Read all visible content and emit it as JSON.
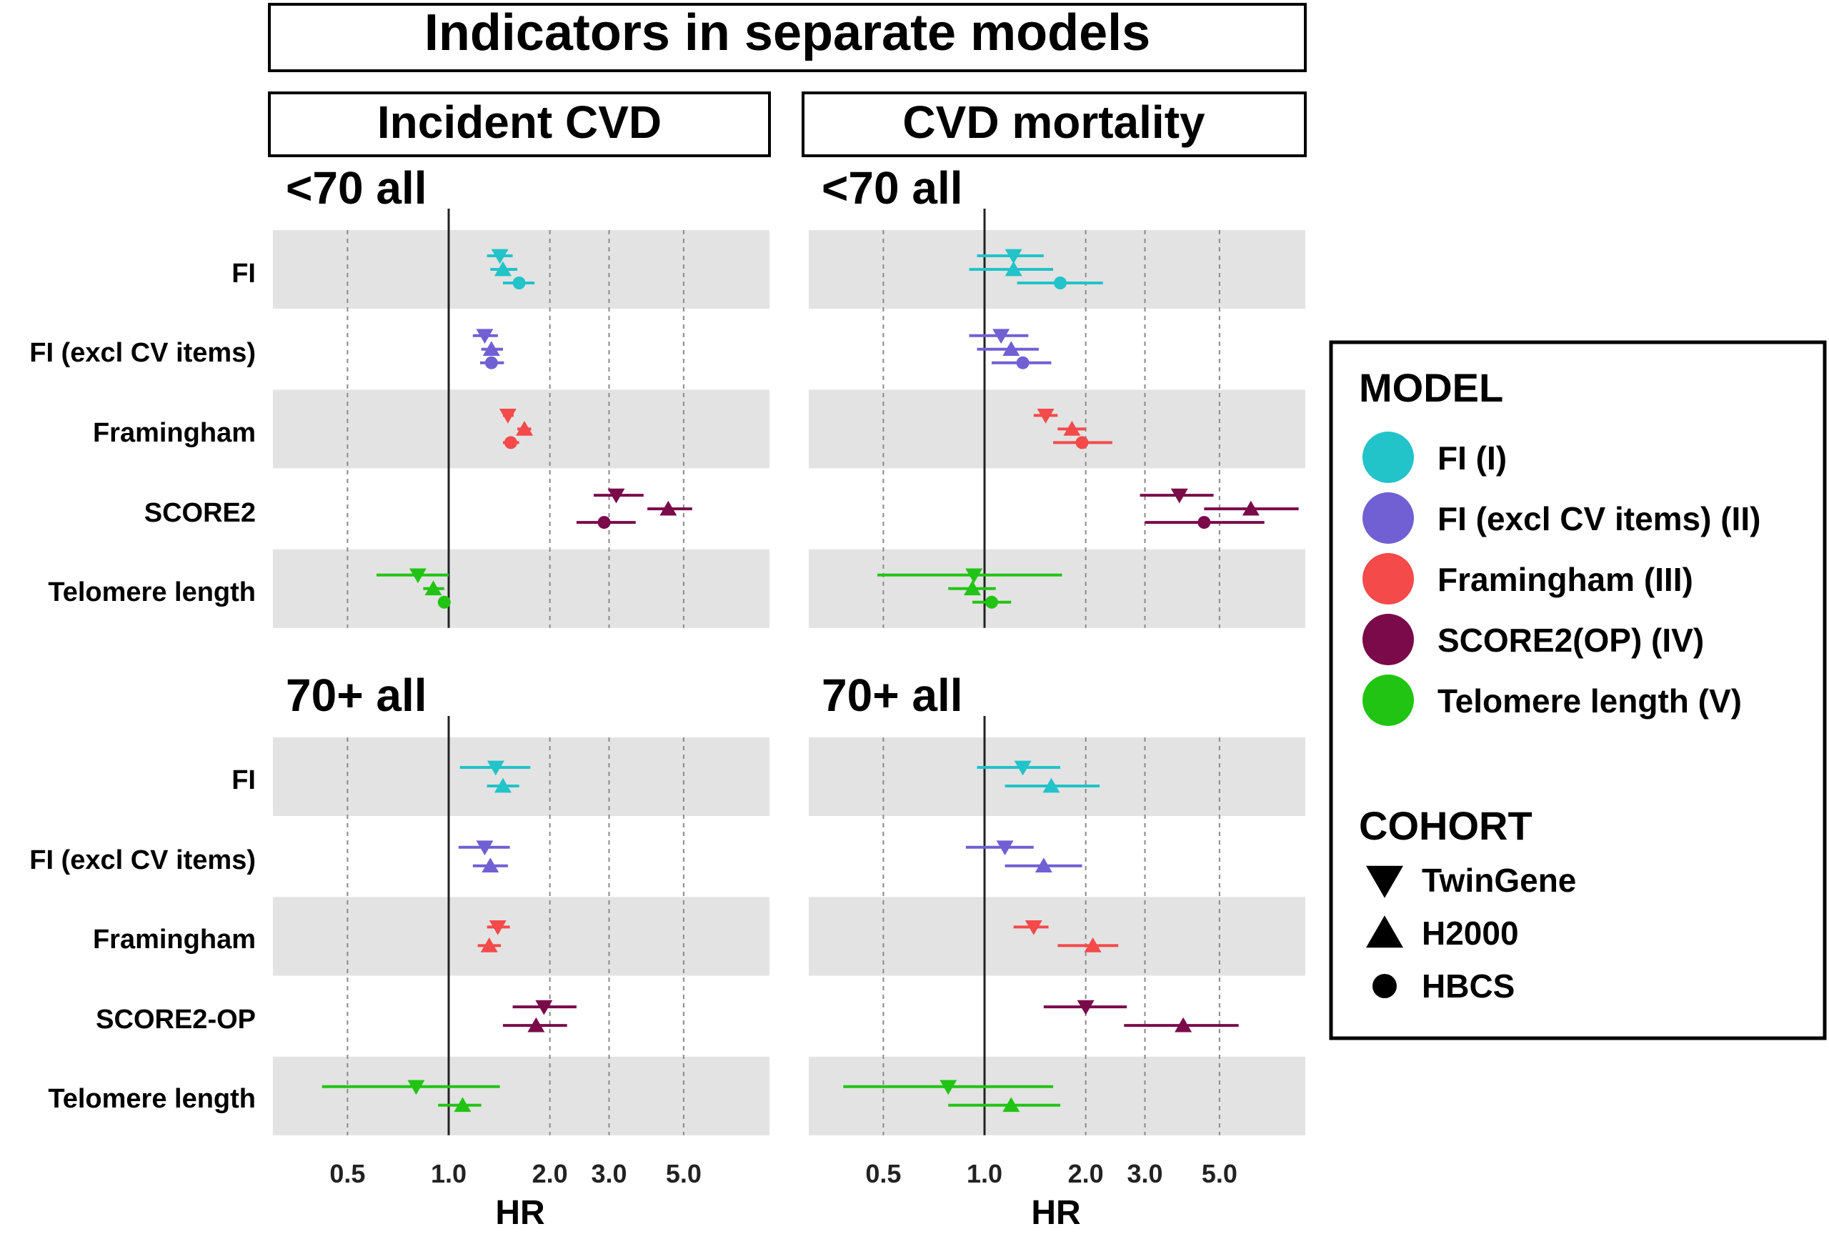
{
  "title": "Indicators in separate models",
  "columns": [
    "Incident CVD",
    "CVD mortality"
  ],
  "sections": [
    "<70 all",
    "70+ all"
  ],
  "row_labels": {
    "under70": [
      "FI",
      "FI (excl CV items)",
      "Framingham",
      "SCORE2",
      "Telomere length"
    ],
    "over70": [
      "FI",
      "FI (excl CV items)",
      "Framingham",
      "SCORE2-OP",
      "Telomere length"
    ]
  },
  "axis": {
    "xlabel": "HR",
    "scale": "log",
    "ticks": [
      0.5,
      1.0,
      2.0,
      3.0,
      5.0
    ],
    "tick_labels": [
      "0.5",
      "1.0",
      "2.0",
      "3.0",
      "5.0"
    ],
    "xlim": [
      0.3,
      9.0
    ],
    "reference_line": 1.0
  },
  "legend": {
    "model_title": "MODEL",
    "models": [
      {
        "label": "FI (I)",
        "color": "#22c3c9"
      },
      {
        "label": "FI (excl CV items) (II)",
        "color": "#7060d4"
      },
      {
        "label": "Framingham (III)",
        "color": "#f44a4a"
      },
      {
        "label": "SCORE2(OP) (IV)",
        "color": "#7a0a4a"
      },
      {
        "label": "Telomere length (V)",
        "color": "#22c414"
      }
    ],
    "cohort_title": "COHORT",
    "cohorts": [
      {
        "label": "TwinGene",
        "shape": "triangle-down"
      },
      {
        "label": "H2000",
        "shape": "triangle-up"
      },
      {
        "label": "HBCS",
        "shape": "circle"
      }
    ]
  },
  "chart_data": [
    {
      "type": "forest",
      "title": "Incident CVD",
      "section": "<70 all",
      "xlabel": "HR",
      "xscale": "log",
      "rows": [
        {
          "label": "FI",
          "model": 0,
          "estimates": [
            {
              "cohort": "TwinGene",
              "hr": 1.42,
              "lo": 1.3,
              "hi": 1.55
            },
            {
              "cohort": "H2000",
              "hr": 1.45,
              "lo": 1.33,
              "hi": 1.6
            },
            {
              "cohort": "HBCS",
              "hr": 1.62,
              "lo": 1.45,
              "hi": 1.8
            }
          ]
        },
        {
          "label": "FI (excl CV items)",
          "model": 1,
          "estimates": [
            {
              "cohort": "TwinGene",
              "hr": 1.28,
              "lo": 1.18,
              "hi": 1.4
            },
            {
              "cohort": "H2000",
              "hr": 1.34,
              "lo": 1.25,
              "hi": 1.45
            },
            {
              "cohort": "HBCS",
              "hr": 1.34,
              "lo": 1.24,
              "hi": 1.46
            }
          ]
        },
        {
          "label": "Framingham",
          "model": 2,
          "estimates": [
            {
              "cohort": "TwinGene",
              "hr": 1.5,
              "lo": 1.45,
              "hi": 1.56
            },
            {
              "cohort": "H2000",
              "hr": 1.68,
              "lo": 1.6,
              "hi": 1.76
            },
            {
              "cohort": "HBCS",
              "hr": 1.53,
              "lo": 1.45,
              "hi": 1.62
            }
          ]
        },
        {
          "label": "SCORE2",
          "model": 3,
          "estimates": [
            {
              "cohort": "TwinGene",
              "hr": 3.15,
              "lo": 2.7,
              "hi": 3.8
            },
            {
              "cohort": "H2000",
              "hr": 4.5,
              "lo": 3.9,
              "hi": 5.3
            },
            {
              "cohort": "HBCS",
              "hr": 2.9,
              "lo": 2.4,
              "hi": 3.6
            }
          ]
        },
        {
          "label": "Telomere length",
          "model": 4,
          "estimates": [
            {
              "cohort": "TwinGene",
              "hr": 0.81,
              "lo": 0.61,
              "hi": 1.0
            },
            {
              "cohort": "H2000",
              "hr": 0.9,
              "lo": 0.84,
              "hi": 0.97
            },
            {
              "cohort": "HBCS",
              "hr": 0.97,
              "lo": 0.93,
              "hi": 1.01
            }
          ]
        }
      ]
    },
    {
      "type": "forest",
      "title": "CVD mortality",
      "section": "<70 all",
      "xlabel": "HR",
      "xscale": "log",
      "rows": [
        {
          "label": "FI",
          "model": 0,
          "estimates": [
            {
              "cohort": "TwinGene",
              "hr": 1.22,
              "lo": 0.95,
              "hi": 1.5
            },
            {
              "cohort": "H2000",
              "hr": 1.22,
              "lo": 0.9,
              "hi": 1.6
            },
            {
              "cohort": "HBCS",
              "hr": 1.68,
              "lo": 1.25,
              "hi": 2.25
            }
          ]
        },
        {
          "label": "FI (excl CV items)",
          "model": 1,
          "estimates": [
            {
              "cohort": "TwinGene",
              "hr": 1.12,
              "lo": 0.9,
              "hi": 1.35
            },
            {
              "cohort": "H2000",
              "hr": 1.2,
              "lo": 0.95,
              "hi": 1.45
            },
            {
              "cohort": "HBCS",
              "hr": 1.3,
              "lo": 1.05,
              "hi": 1.58
            }
          ]
        },
        {
          "label": "Framingham",
          "model": 2,
          "estimates": [
            {
              "cohort": "TwinGene",
              "hr": 1.52,
              "lo": 1.4,
              "hi": 1.65
            },
            {
              "cohort": "H2000",
              "hr": 1.82,
              "lo": 1.65,
              "hi": 2.0
            },
            {
              "cohort": "HBCS",
              "hr": 1.95,
              "lo": 1.6,
              "hi": 2.4
            }
          ]
        },
        {
          "label": "SCORE2",
          "model": 3,
          "estimates": [
            {
              "cohort": "TwinGene",
              "hr": 3.8,
              "lo": 2.9,
              "hi": 4.8
            },
            {
              "cohort": "H2000",
              "hr": 6.2,
              "lo": 4.5,
              "hi": 8.6
            },
            {
              "cohort": "HBCS",
              "hr": 4.5,
              "lo": 3.0,
              "hi": 6.8
            }
          ]
        },
        {
          "label": "Telomere length",
          "model": 4,
          "estimates": [
            {
              "cohort": "TwinGene",
              "hr": 0.93,
              "lo": 0.48,
              "hi": 1.7
            },
            {
              "cohort": "H2000",
              "hr": 0.92,
              "lo": 0.78,
              "hi": 1.08
            },
            {
              "cohort": "HBCS",
              "hr": 1.05,
              "lo": 0.92,
              "hi": 1.2
            }
          ]
        }
      ]
    },
    {
      "type": "forest",
      "title": "Incident CVD",
      "section": "70+ all",
      "xlabel": "HR",
      "xscale": "log",
      "rows": [
        {
          "label": "FI",
          "model": 0,
          "estimates": [
            {
              "cohort": "TwinGene",
              "hr": 1.38,
              "lo": 1.08,
              "hi": 1.75
            },
            {
              "cohort": "H2000",
              "hr": 1.45,
              "lo": 1.3,
              "hi": 1.62
            }
          ]
        },
        {
          "label": "FI (excl CV items)",
          "model": 1,
          "estimates": [
            {
              "cohort": "TwinGene",
              "hr": 1.28,
              "lo": 1.07,
              "hi": 1.52
            },
            {
              "cohort": "H2000",
              "hr": 1.33,
              "lo": 1.18,
              "hi": 1.5
            }
          ]
        },
        {
          "label": "Framingham",
          "model": 2,
          "estimates": [
            {
              "cohort": "TwinGene",
              "hr": 1.4,
              "lo": 1.3,
              "hi": 1.52
            },
            {
              "cohort": "H2000",
              "hr": 1.32,
              "lo": 1.22,
              "hi": 1.43
            }
          ]
        },
        {
          "label": "SCORE2-OP",
          "model": 3,
          "estimates": [
            {
              "cohort": "TwinGene",
              "hr": 1.92,
              "lo": 1.55,
              "hi": 2.4
            },
            {
              "cohort": "H2000",
              "hr": 1.82,
              "lo": 1.45,
              "hi": 2.25
            }
          ]
        },
        {
          "label": "Telomere length",
          "model": 4,
          "estimates": [
            {
              "cohort": "TwinGene",
              "hr": 0.8,
              "lo": 0.42,
              "hi": 1.42
            },
            {
              "cohort": "H2000",
              "hr": 1.1,
              "lo": 0.93,
              "hi": 1.25
            }
          ]
        }
      ]
    },
    {
      "type": "forest",
      "title": "CVD mortality",
      "section": "70+ all",
      "xlabel": "HR",
      "xscale": "log",
      "rows": [
        {
          "label": "FI",
          "model": 0,
          "estimates": [
            {
              "cohort": "TwinGene",
              "hr": 1.3,
              "lo": 0.95,
              "hi": 1.68
            },
            {
              "cohort": "H2000",
              "hr": 1.58,
              "lo": 1.15,
              "hi": 2.2
            }
          ]
        },
        {
          "label": "FI (excl CV items)",
          "model": 1,
          "estimates": [
            {
              "cohort": "TwinGene",
              "hr": 1.15,
              "lo": 0.88,
              "hi": 1.4
            },
            {
              "cohort": "H2000",
              "hr": 1.5,
              "lo": 1.15,
              "hi": 1.95
            }
          ]
        },
        {
          "label": "Framingham",
          "model": 2,
          "estimates": [
            {
              "cohort": "TwinGene",
              "hr": 1.4,
              "lo": 1.22,
              "hi": 1.55
            },
            {
              "cohort": "H2000",
              "hr": 2.1,
              "lo": 1.65,
              "hi": 2.5
            }
          ]
        },
        {
          "label": "SCORE2-OP",
          "model": 3,
          "estimates": [
            {
              "cohort": "TwinGene",
              "hr": 2.0,
              "lo": 1.5,
              "hi": 2.65
            },
            {
              "cohort": "H2000",
              "hr": 3.9,
              "lo": 2.6,
              "hi": 5.7
            }
          ]
        },
        {
          "label": "Telomere length",
          "model": 4,
          "estimates": [
            {
              "cohort": "TwinGene",
              "hr": 0.78,
              "lo": 0.38,
              "hi": 1.6
            },
            {
              "cohort": "H2000",
              "hr": 1.2,
              "lo": 0.78,
              "hi": 1.68
            }
          ]
        }
      ]
    }
  ]
}
